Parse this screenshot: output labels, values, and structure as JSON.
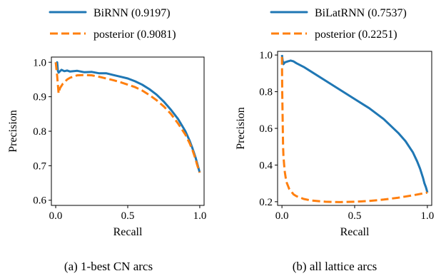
{
  "colors": {
    "series_blue": "#1f77b4",
    "series_orange": "#ff7f0e"
  },
  "chart_data": [
    {
      "type": "line",
      "caption": "(a) 1-best CN arcs",
      "xlabel": "Recall",
      "ylabel": "Precision",
      "xlim": [
        -0.03,
        1.03
      ],
      "ylim": [
        0.585,
        1.015
      ],
      "xticks": [
        "0.0",
        "0.5",
        "1.0"
      ],
      "xtick_values": [
        0.0,
        0.5,
        1.0
      ],
      "yticks": [
        "0.6",
        "0.7",
        "0.8",
        "0.9",
        "1.0"
      ],
      "ytick_values": [
        0.6,
        0.7,
        0.8,
        0.9,
        1.0
      ],
      "legend_position": "above",
      "series": [
        {
          "name": "BiRNN (0.9197)",
          "style": "solid",
          "x": [
            0.0,
            0.005,
            0.01,
            0.015,
            0.02,
            0.04,
            0.06,
            0.08,
            0.1,
            0.15,
            0.2,
            0.25,
            0.3,
            0.35,
            0.4,
            0.45,
            0.5,
            0.55,
            0.6,
            0.65,
            0.7,
            0.75,
            0.8,
            0.85,
            0.9,
            0.93,
            0.95,
            0.97,
            0.98,
            0.99,
            1.0
          ],
          "y": [
            1.0,
            0.99,
            1.0,
            0.975,
            0.97,
            0.978,
            0.974,
            0.976,
            0.973,
            0.975,
            0.971,
            0.972,
            0.968,
            0.968,
            0.963,
            0.958,
            0.953,
            0.945,
            0.935,
            0.922,
            0.906,
            0.886,
            0.862,
            0.835,
            0.8,
            0.772,
            0.75,
            0.725,
            0.71,
            0.695,
            0.68
          ]
        },
        {
          "name": "posterior (0.9081)",
          "style": "dashed",
          "x": [
            0.0,
            0.01,
            0.02,
            0.03,
            0.05,
            0.08,
            0.1,
            0.15,
            0.2,
            0.25,
            0.3,
            0.35,
            0.4,
            0.45,
            0.5,
            0.55,
            0.6,
            0.65,
            0.7,
            0.75,
            0.8,
            0.85,
            0.9,
            0.93,
            0.95,
            0.97,
            0.98,
            0.99,
            1.0
          ],
          "y": [
            1.0,
            0.96,
            0.91,
            0.925,
            0.938,
            0.95,
            0.955,
            0.962,
            0.963,
            0.962,
            0.958,
            0.953,
            0.948,
            0.942,
            0.935,
            0.928,
            0.918,
            0.905,
            0.89,
            0.872,
            0.85,
            0.822,
            0.79,
            0.765,
            0.745,
            0.72,
            0.705,
            0.692,
            0.68
          ]
        }
      ]
    },
    {
      "type": "line",
      "caption": "(b) all lattice arcs",
      "xlabel": "Recall",
      "ylabel": "Precision",
      "xlim": [
        -0.03,
        1.03
      ],
      "ylim": [
        0.18,
        1.02
      ],
      "xticks": [
        "0.0",
        "0.5",
        "1.0"
      ],
      "xtick_values": [
        0.0,
        0.5,
        1.0
      ],
      "yticks": [
        "0.2",
        "0.4",
        "0.6",
        "0.8",
        "1.0"
      ],
      "ytick_values": [
        0.2,
        0.4,
        0.6,
        0.8,
        1.0
      ],
      "legend_position": "above",
      "series": [
        {
          "name": "BiLatRNN (0.7537)",
          "style": "solid",
          "x": [
            0.0,
            0.005,
            0.01,
            0.02,
            0.04,
            0.06,
            0.08,
            0.1,
            0.15,
            0.2,
            0.3,
            0.4,
            0.5,
            0.6,
            0.7,
            0.8,
            0.85,
            0.9,
            0.93,
            0.95,
            0.97,
            0.98,
            0.99,
            0.995,
            1.0
          ],
          "y": [
            1.0,
            0.97,
            0.95,
            0.96,
            0.965,
            0.97,
            0.965,
            0.955,
            0.935,
            0.91,
            0.86,
            0.81,
            0.76,
            0.71,
            0.65,
            0.575,
            0.53,
            0.47,
            0.42,
            0.38,
            0.33,
            0.3,
            0.28,
            0.265,
            0.25
          ]
        },
        {
          "name": "posterior (0.2251)",
          "style": "dashed",
          "x": [
            0.0,
            0.002,
            0.004,
            0.006,
            0.008,
            0.01,
            0.015,
            0.02,
            0.03,
            0.05,
            0.08,
            0.1,
            0.15,
            0.2,
            0.3,
            0.4,
            0.5,
            0.6,
            0.7,
            0.8,
            0.9,
            1.0
          ],
          "y": [
            0.99,
            0.8,
            0.7,
            0.6,
            0.5,
            0.45,
            0.4,
            0.36,
            0.31,
            0.27,
            0.24,
            0.23,
            0.215,
            0.207,
            0.2,
            0.198,
            0.2,
            0.204,
            0.212,
            0.222,
            0.235,
            0.25
          ]
        }
      ]
    }
  ]
}
